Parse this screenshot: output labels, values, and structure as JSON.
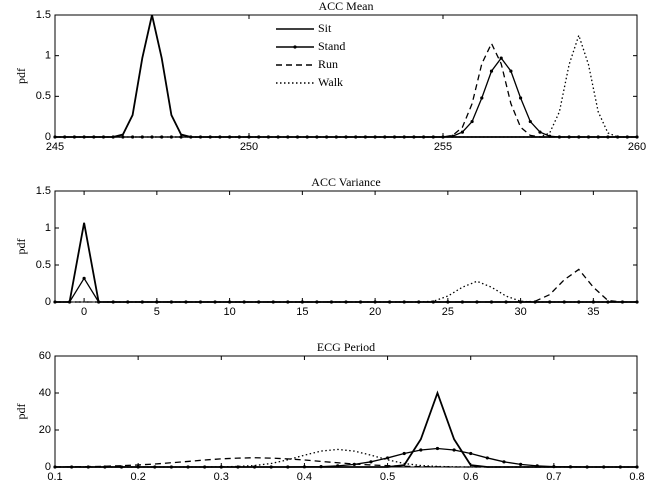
{
  "chart_data": [
    {
      "type": "line",
      "title": "ACC Mean",
      "ylabel": "pdf",
      "xlim": [
        245,
        260
      ],
      "ylim": [
        0,
        1.5
      ],
      "xticks": [
        245,
        250,
        255,
        260
      ],
      "yticks": [
        0,
        0.5,
        1,
        1.5
      ],
      "legend": "upper center",
      "x": [
        245,
        245.25,
        245.5,
        245.75,
        246,
        246.25,
        246.5,
        246.75,
        247,
        247.25,
        247.5,
        247.75,
        248,
        248.25,
        248.5,
        248.75,
        249,
        249.25,
        249.5,
        249.75,
        250,
        250.25,
        250.5,
        250.75,
        251,
        251.25,
        251.5,
        251.75,
        252,
        252.25,
        252.5,
        252.75,
        253,
        253.25,
        253.5,
        253.75,
        254,
        254.25,
        254.5,
        254.75,
        255,
        255.25,
        255.5,
        255.75,
        256,
        256.25,
        256.5,
        256.75,
        257,
        257.25,
        257.5,
        257.75,
        258,
        258.25,
        258.5,
        258.75,
        259,
        259.25,
        259.5,
        259.75,
        260
      ],
      "series": [
        {
          "name": "Sit",
          "color": "#000000",
          "style": "solid",
          "marker": false,
          "values": [
            0,
            0,
            0,
            0,
            0,
            0,
            0,
            0.03,
            0.27,
            0.97,
            1.5,
            0.97,
            0.27,
            0.03,
            0,
            0,
            0,
            0,
            0,
            0,
            0,
            0,
            0,
            0,
            0,
            0,
            0,
            0,
            0,
            0,
            0,
            0,
            0,
            0,
            0,
            0,
            0,
            0,
            0,
            0,
            0,
            0,
            0,
            0,
            0,
            0,
            0,
            0,
            0,
            0,
            0,
            0,
            0,
            0,
            0,
            0,
            0,
            0,
            0,
            0,
            0
          ]
        },
        {
          "name": "Stand",
          "color": "#000000",
          "style": "solid",
          "marker": true,
          "values": [
            0,
            0,
            0,
            0,
            0,
            0,
            0,
            0,
            0,
            0,
            0,
            0,
            0,
            0,
            0,
            0,
            0,
            0,
            0,
            0,
            0,
            0,
            0,
            0,
            0,
            0,
            0,
            0,
            0,
            0,
            0,
            0,
            0,
            0,
            0,
            0,
            0,
            0,
            0,
            0,
            0,
            0.01,
            0.06,
            0.19,
            0.48,
            0.81,
            0.97,
            0.81,
            0.48,
            0.19,
            0.06,
            0.01,
            0,
            0,
            0,
            0,
            0,
            0,
            0,
            0,
            0
          ]
        },
        {
          "name": "Run",
          "color": "#000000",
          "style": "dashed",
          "marker": false,
          "values": [
            0,
            0,
            0,
            0,
            0,
            0,
            0,
            0,
            0,
            0,
            0,
            0,
            0,
            0,
            0,
            0,
            0,
            0,
            0,
            0,
            0,
            0,
            0,
            0,
            0,
            0,
            0,
            0,
            0,
            0,
            0,
            0,
            0,
            0,
            0,
            0,
            0,
            0,
            0,
            0,
            0,
            0.02,
            0.12,
            0.41,
            0.9,
            1.15,
            0.9,
            0.41,
            0.12,
            0.02,
            0,
            0,
            0,
            0,
            0,
            0,
            0,
            0,
            0,
            0,
            0
          ]
        },
        {
          "name": "Walk",
          "color": "#000000",
          "style": "dotted",
          "marker": false,
          "values": [
            0,
            0,
            0,
            0,
            0,
            0,
            0,
            0,
            0,
            0,
            0,
            0,
            0,
            0,
            0,
            0,
            0,
            0,
            0,
            0,
            0,
            0,
            0,
            0,
            0,
            0,
            0,
            0,
            0,
            0,
            0,
            0,
            0,
            0,
            0,
            0,
            0,
            0,
            0,
            0,
            0,
            0,
            0,
            0,
            0,
            0,
            0,
            0,
            0,
            0,
            0,
            0.05,
            0.31,
            0.89,
            1.25,
            0.89,
            0.31,
            0.05,
            0,
            0,
            0
          ]
        }
      ]
    },
    {
      "type": "line",
      "title": "ACC Variance",
      "ylabel": "pdf",
      "xlim": [
        -2,
        38
      ],
      "ylim": [
        0,
        1.5
      ],
      "xticks": [
        0,
        5,
        10,
        15,
        20,
        25,
        30,
        35
      ],
      "yticks": [
        0,
        0.5,
        1,
        1.5
      ],
      "x": [
        -2,
        -1,
        0,
        1,
        2,
        3,
        4,
        5,
        6,
        7,
        8,
        9,
        10,
        11,
        12,
        13,
        14,
        15,
        16,
        17,
        18,
        19,
        20,
        21,
        22,
        23,
        24,
        25,
        26,
        27,
        28,
        29,
        30,
        31,
        32,
        33,
        34,
        35,
        36,
        37,
        38
      ],
      "series": [
        {
          "color": "#000000",
          "style": "solid",
          "marker": false,
          "values": [
            0,
            0,
            1.07,
            0,
            0,
            0,
            0,
            0,
            0,
            0,
            0,
            0,
            0,
            0,
            0,
            0,
            0,
            0,
            0,
            0,
            0,
            0,
            0,
            0,
            0,
            0,
            0,
            0,
            0,
            0,
            0,
            0,
            0,
            0,
            0,
            0,
            0,
            0,
            0,
            0,
            0
          ]
        },
        {
          "color": "#000000",
          "style": "solid",
          "marker": true,
          "values": [
            0,
            0,
            0.32,
            0,
            0,
            0,
            0,
            0,
            0,
            0,
            0,
            0,
            0,
            0,
            0,
            0,
            0,
            0,
            0,
            0,
            0,
            0,
            0,
            0,
            0,
            0,
            0,
            0,
            0,
            0,
            0,
            0,
            0,
            0,
            0,
            0,
            0,
            0,
            0,
            0,
            0
          ]
        },
        {
          "color": "#000000",
          "style": "dashed",
          "marker": false,
          "values": [
            0,
            0,
            0,
            0,
            0,
            0,
            0,
            0,
            0,
            0,
            0,
            0,
            0,
            0,
            0,
            0,
            0,
            0,
            0,
            0,
            0,
            0,
            0,
            0,
            0,
            0,
            0,
            0,
            0,
            0,
            0,
            0,
            0,
            0.01,
            0.1,
            0.3,
            0.44,
            0.2,
            0.02,
            0,
            0
          ]
        },
        {
          "color": "#000000",
          "style": "dotted",
          "marker": false,
          "values": [
            0,
            0,
            0,
            0,
            0,
            0,
            0,
            0,
            0,
            0,
            0,
            0,
            0,
            0,
            0,
            0,
            0,
            0,
            0,
            0,
            0,
            0,
            0,
            0,
            0,
            0,
            0.01,
            0.08,
            0.2,
            0.28,
            0.2,
            0.08,
            0.01,
            0,
            0,
            0,
            0,
            0,
            0,
            0,
            0
          ]
        }
      ]
    },
    {
      "type": "line",
      "title": "ECG Period",
      "ylabel": "pdf",
      "xlim": [
        0.1,
        0.8
      ],
      "ylim": [
        0,
        60
      ],
      "xticks": [
        0.1,
        0.2,
        0.3,
        0.4,
        0.5,
        0.6,
        0.7,
        0.8
      ],
      "yticks": [
        0,
        20,
        40,
        60
      ],
      "x": [
        0.1,
        0.12,
        0.14,
        0.16,
        0.18,
        0.2,
        0.22,
        0.24,
        0.26,
        0.28,
        0.3,
        0.32,
        0.34,
        0.36,
        0.38,
        0.4,
        0.42,
        0.44,
        0.46,
        0.48,
        0.5,
        0.52,
        0.54,
        0.56,
        0.58,
        0.6,
        0.62,
        0.64,
        0.66,
        0.68,
        0.7,
        0.72,
        0.74,
        0.76,
        0.78,
        0.8
      ],
      "series": [
        {
          "color": "#000000",
          "style": "solid",
          "marker": false,
          "values": [
            0,
            0,
            0,
            0,
            0,
            0,
            0,
            0,
            0,
            0,
            0,
            0,
            0,
            0,
            0,
            0,
            0,
            0,
            0,
            0,
            0,
            1,
            15,
            40,
            15,
            1,
            0,
            0,
            0,
            0,
            0,
            0,
            0,
            0,
            0,
            0
          ]
        },
        {
          "color": "#000000",
          "style": "solid",
          "marker": true,
          "values": [
            0,
            0,
            0,
            0,
            0,
            0,
            0,
            0,
            0,
            0,
            0,
            0,
            0,
            0,
            0,
            0.1,
            0.2,
            0.6,
            1.4,
            2.8,
            4.9,
            7.3,
            9.2,
            10,
            9.2,
            7.3,
            4.9,
            2.8,
            1.4,
            0.6,
            0.2,
            0.1,
            0,
            0,
            0,
            0
          ]
        },
        {
          "color": "#000000",
          "style": "dashed",
          "marker": false,
          "values": [
            0,
            0.1,
            0.2,
            0.4,
            0.7,
            1.1,
            1.6,
            2.3,
            3,
            3.8,
            4.4,
            4.8,
            5,
            4.8,
            4.4,
            3.8,
            3,
            2.3,
            1.6,
            1.1,
            0.7,
            0.4,
            0.2,
            0.1,
            0,
            0,
            0,
            0,
            0,
            0,
            0,
            0,
            0,
            0,
            0,
            0
          ]
        },
        {
          "color": "#000000",
          "style": "dotted",
          "marker": false,
          "values": [
            0,
            0,
            0,
            0,
            0,
            0,
            0,
            0,
            0,
            0,
            0.1,
            0.3,
            0.8,
            1.9,
            3.9,
            6.4,
            8.6,
            9.5,
            8.6,
            6.4,
            3.9,
            1.9,
            0.8,
            0.3,
            0.1,
            0,
            0,
            0,
            0,
            0,
            0,
            0,
            0,
            0,
            0,
            0
          ]
        }
      ]
    }
  ]
}
